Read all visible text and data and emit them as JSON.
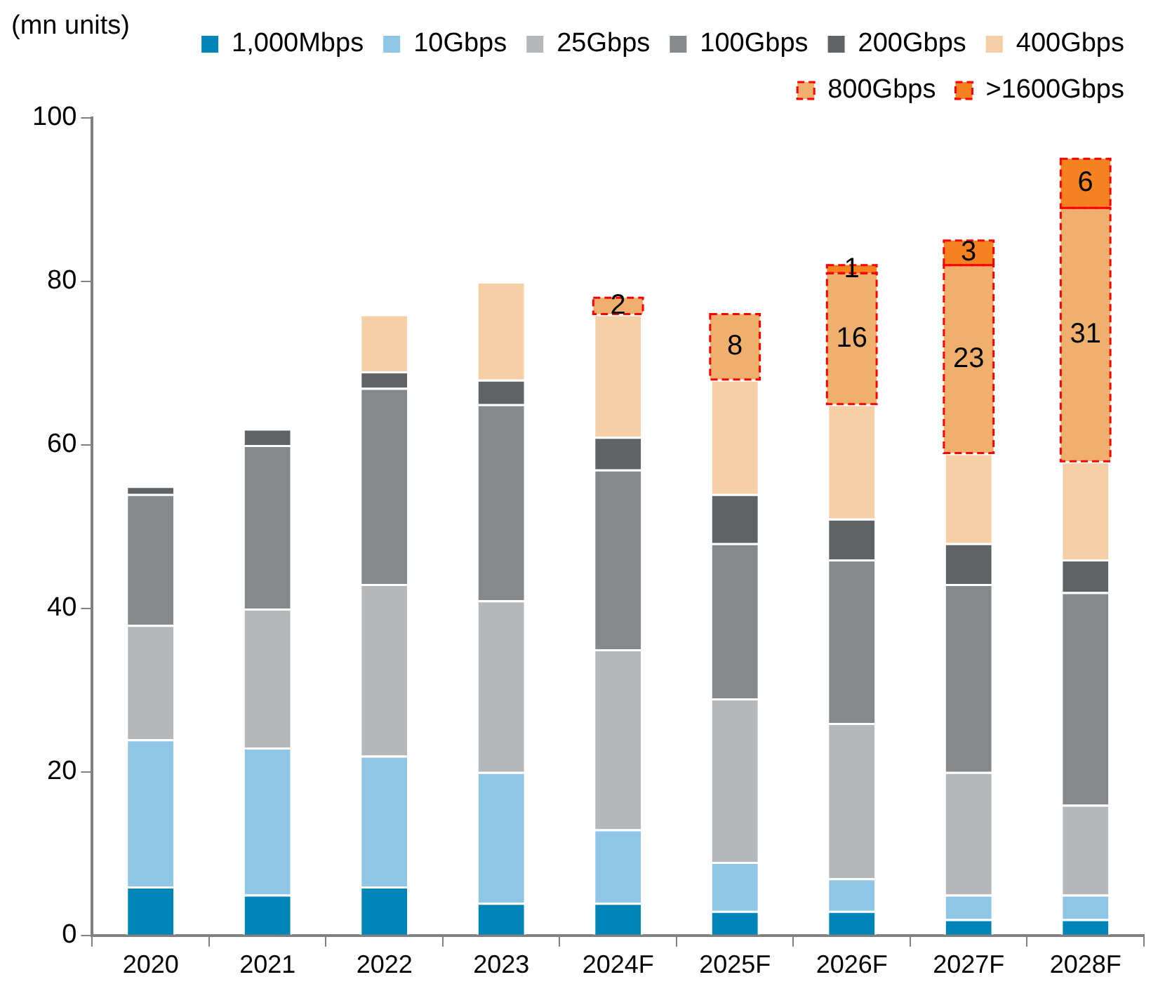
{
  "chart_data": {
    "type": "bar",
    "stacked": true,
    "ylabel": "(mn units)",
    "categories": [
      "2020",
      "2021",
      "2022",
      "2023",
      "2024F",
      "2025F",
      "2026F",
      "2027F",
      "2028F"
    ],
    "ylim": [
      0,
      100
    ],
    "yticks": [
      0,
      20,
      40,
      60,
      80,
      100
    ],
    "grid": false,
    "legend": "top",
    "series": [
      {
        "name": "1,000Mbps",
        "color": "#0085b8",
        "values": [
          6,
          5,
          6,
          4,
          4,
          3,
          3,
          2,
          2
        ]
      },
      {
        "name": "10Gbps",
        "color": "#8fc6e6",
        "values": [
          18,
          18,
          16,
          16,
          9,
          6,
          4,
          3,
          3
        ]
      },
      {
        "name": "25Gbps",
        "color": "#b6b7b9",
        "values": [
          14,
          17,
          21,
          21,
          22,
          20,
          19,
          15,
          11
        ]
      },
      {
        "name": "100Gbps",
        "color": "#86898c",
        "values": [
          16,
          20,
          24,
          24,
          22,
          19,
          20,
          23,
          26
        ]
      },
      {
        "name": "200Gbps",
        "color": "#606366",
        "values": [
          1,
          2,
          2,
          3,
          4,
          6,
          5,
          5,
          4
        ]
      },
      {
        "name": "400Gbps",
        "color": "#f5cfa5",
        "values": [
          null,
          null,
          7,
          12,
          15,
          14,
          14,
          11,
          12
        ]
      },
      {
        "name": "800Gbps",
        "color": "#efb06e",
        "line_style": "dashed",
        "values": [
          null,
          null,
          null,
          null,
          2,
          8,
          16,
          23,
          31
        ],
        "value_labels": [
          null,
          null,
          null,
          null,
          "2",
          "8",
          "16",
          "23",
          "31"
        ]
      },
      {
        "name": ">1600Gbps",
        "color": "#f58220",
        "line_style": "dashed",
        "values": [
          null,
          null,
          null,
          null,
          null,
          null,
          1,
          3,
          6
        ],
        "value_labels": [
          null,
          null,
          null,
          null,
          null,
          null,
          "1",
          "3",
          "6"
        ]
      }
    ]
  }
}
